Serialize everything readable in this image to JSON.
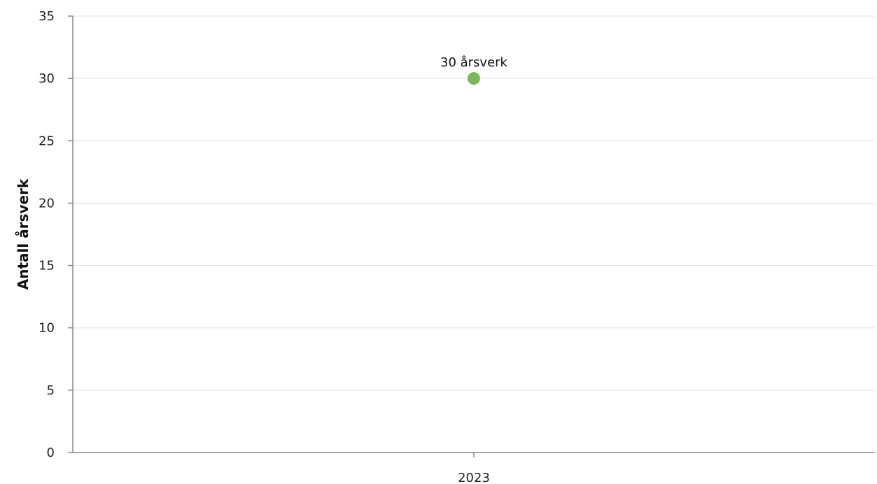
{
  "chart_data": {
    "type": "scatter",
    "ylabel": "Antall årsverk",
    "xlabel": "",
    "categories": [
      "2023"
    ],
    "ylim": [
      0,
      35
    ],
    "yticks": [
      0,
      5,
      10,
      15,
      20,
      25,
      30,
      35
    ],
    "grid": true,
    "legend": "none",
    "series": [
      {
        "values": [
          30
        ],
        "data_labels": [
          "30 årsverk"
        ],
        "color": "#7db65a"
      }
    ]
  }
}
